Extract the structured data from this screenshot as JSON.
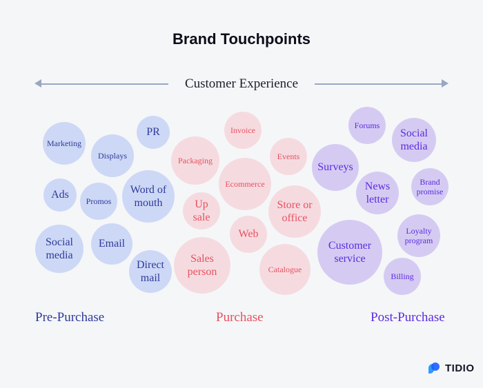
{
  "title": "Brand Touchpoints",
  "axis_label": "Customer Experience",
  "colors": {
    "pre": "#2f3a9a",
    "purchase": "#e9505f",
    "post": "#5b2be0"
  },
  "categories": {
    "pre": "Pre-Purchase",
    "purchase": "Purchase",
    "post": "Post-Purchase"
  },
  "pre": [
    "Marketing",
    "Displays",
    "PR",
    "Ads",
    "Promos",
    "Word of\nmouth",
    "Social\nmedia",
    "Email",
    "Direct\nmail"
  ],
  "purchase": [
    "Invoice",
    "Packaging",
    "Events",
    "Ecommerce",
    "Up\nsale",
    "Store or\noffice",
    "Web",
    "Sales\nperson",
    "Catalogue"
  ],
  "post": [
    "Forums",
    "Social\nmedia",
    "Surveys",
    "News\nletter",
    "Brand\npromise",
    "Customer\nservice",
    "Loyalty\nprogram",
    "Billing"
  ],
  "logo": "TIDIO"
}
